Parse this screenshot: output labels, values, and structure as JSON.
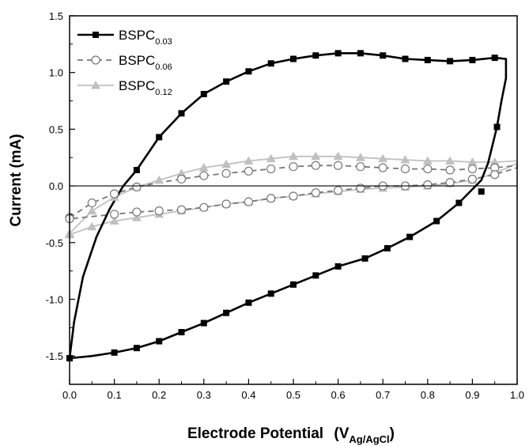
{
  "chart_data": {
    "type": "line",
    "title": "",
    "xlabel": {
      "main": "Electrode Potential",
      "unit_base": "V",
      "unit_sub": "Ag/AgCl"
    },
    "ylabel": "Current  (mA)",
    "xlim": [
      0.0,
      1.0
    ],
    "ylim": [
      -1.75,
      1.5
    ],
    "x_ticks": [
      "0.0",
      "0.1",
      "0.2",
      "0.3",
      "0.4",
      "0.5",
      "0.6",
      "0.7",
      "0.8",
      "0.9",
      "1.0"
    ],
    "y_ticks": [
      "1.5",
      "1.0",
      "0.5",
      "0.0",
      "-0.5",
      "-1.0",
      "-1.5"
    ],
    "y_tick_values": [
      1.5,
      1.0,
      0.5,
      0.0,
      -0.5,
      -1.0,
      -1.5
    ],
    "x_tick_values": [
      0.0,
      0.1,
      0.2,
      0.3,
      0.4,
      0.5,
      0.6,
      0.7,
      0.8,
      0.9,
      1.0
    ],
    "zero_line": true,
    "grid": false,
    "legend_position": "top-left",
    "series": [
      {
        "name": "BSPC",
        "name_sub": "0.03",
        "color": "#000000",
        "marker": "filled-square",
        "dash": "solid",
        "markers_x": [
          0.15,
          0.2,
          0.25,
          0.3,
          0.35,
          0.4,
          0.45,
          0.5,
          0.55,
          0.6,
          0.65,
          0.7,
          0.75,
          0.8,
          0.85,
          0.9,
          0.95,
          0.955,
          0.92,
          0.87,
          0.82,
          0.76,
          0.71,
          0.66,
          0.6,
          0.55,
          0.5,
          0.45,
          0.4,
          0.35,
          0.3,
          0.25,
          0.2,
          0.15,
          0.1,
          0.0
        ],
        "markers_y": [
          0.14,
          0.43,
          0.64,
          0.81,
          0.92,
          1.01,
          1.08,
          1.12,
          1.15,
          1.17,
          1.17,
          1.15,
          1.12,
          1.11,
          1.1,
          1.11,
          1.13,
          0.52,
          -0.05,
          -0.15,
          -0.31,
          -0.45,
          -0.55,
          -0.64,
          -0.71,
          -0.79,
          -0.87,
          -0.95,
          -1.03,
          -1.12,
          -1.21,
          -1.29,
          -1.37,
          -1.43,
          -1.47,
          -1.52
        ],
        "curve_x": [
          0.0,
          0.01,
          0.03,
          0.06,
          0.09,
          0.12,
          0.15,
          0.2,
          0.25,
          0.3,
          0.35,
          0.4,
          0.45,
          0.5,
          0.55,
          0.6,
          0.65,
          0.7,
          0.75,
          0.8,
          0.85,
          0.9,
          0.95,
          0.975,
          0.975,
          0.965,
          0.955,
          0.935,
          0.92,
          0.9,
          0.87,
          0.82,
          0.76,
          0.71,
          0.66,
          0.6,
          0.55,
          0.5,
          0.45,
          0.4,
          0.35,
          0.3,
          0.25,
          0.2,
          0.15,
          0.1,
          0.05,
          0.0
        ],
        "curve_y": [
          -1.52,
          -1.2,
          -0.8,
          -0.45,
          -0.2,
          0.0,
          0.14,
          0.43,
          0.64,
          0.81,
          0.92,
          1.01,
          1.08,
          1.12,
          1.15,
          1.17,
          1.17,
          1.15,
          1.12,
          1.11,
          1.1,
          1.11,
          1.13,
          1.12,
          0.95,
          0.75,
          0.52,
          0.2,
          0.05,
          -0.03,
          -0.15,
          -0.31,
          -0.45,
          -0.55,
          -0.64,
          -0.71,
          -0.79,
          -0.87,
          -0.95,
          -1.03,
          -1.12,
          -1.21,
          -1.29,
          -1.37,
          -1.43,
          -1.47,
          -1.5,
          -1.52
        ]
      },
      {
        "name": "BSPC",
        "name_sub": "0.06",
        "color": "#777777",
        "marker": "open-circle",
        "dash": "dashed",
        "markers_x": [
          0.0,
          0.05,
          0.1,
          0.15,
          0.25,
          0.3,
          0.35,
          0.4,
          0.45,
          0.5,
          0.55,
          0.6,
          0.65,
          0.7,
          0.75,
          0.8,
          0.85,
          0.9,
          0.95,
          0.95,
          0.9,
          0.85,
          0.8,
          0.75,
          0.7,
          0.65,
          0.6,
          0.55,
          0.5,
          0.45,
          0.4,
          0.35,
          0.3,
          0.25,
          0.2,
          0.15,
          0.1,
          0.0
        ],
        "markers_y": [
          -0.28,
          -0.15,
          -0.07,
          -0.01,
          0.06,
          0.09,
          0.11,
          0.13,
          0.15,
          0.17,
          0.18,
          0.18,
          0.17,
          0.16,
          0.15,
          0.15,
          0.14,
          0.15,
          0.16,
          0.1,
          0.06,
          0.03,
          0.01,
          0.0,
          0.0,
          -0.02,
          -0.04,
          -0.06,
          -0.09,
          -0.11,
          -0.14,
          -0.16,
          -0.19,
          -0.21,
          -0.22,
          -0.23,
          -0.25,
          -0.29
        ],
        "curve_x": [
          0.0,
          0.05,
          0.1,
          0.15,
          0.2,
          0.25,
          0.3,
          0.35,
          0.4,
          0.45,
          0.5,
          0.55,
          0.6,
          0.65,
          0.7,
          0.75,
          0.8,
          0.85,
          0.9,
          0.95,
          1.0,
          1.0,
          0.95,
          0.9,
          0.85,
          0.8,
          0.75,
          0.7,
          0.65,
          0.6,
          0.55,
          0.5,
          0.45,
          0.4,
          0.35,
          0.3,
          0.25,
          0.2,
          0.15,
          0.1,
          0.05,
          0.0
        ],
        "curve_y": [
          -0.28,
          -0.15,
          -0.07,
          -0.01,
          0.03,
          0.06,
          0.09,
          0.11,
          0.13,
          0.15,
          0.17,
          0.18,
          0.18,
          0.17,
          0.16,
          0.15,
          0.15,
          0.14,
          0.15,
          0.16,
          0.18,
          0.16,
          0.1,
          0.06,
          0.03,
          0.01,
          0.0,
          0.0,
          -0.02,
          -0.04,
          -0.06,
          -0.09,
          -0.11,
          -0.14,
          -0.16,
          -0.19,
          -0.21,
          -0.22,
          -0.23,
          -0.25,
          -0.27,
          -0.29
        ]
      },
      {
        "name": "BSPC",
        "name_sub": "0.12",
        "color": "#c0c0c0",
        "marker": "filled-triangle",
        "dash": "solid",
        "markers_x": [
          0.0,
          0.05,
          0.1,
          0.15,
          0.2,
          0.25,
          0.3,
          0.35,
          0.4,
          0.45,
          0.5,
          0.55,
          0.6,
          0.65,
          0.7,
          0.75,
          0.8,
          0.85,
          0.9,
          0.95,
          0.95,
          0.9,
          0.85,
          0.8,
          0.75,
          0.7,
          0.65,
          0.6,
          0.55,
          0.5,
          0.45,
          0.4,
          0.35,
          0.3,
          0.25,
          0.2,
          0.15,
          0.1,
          0.05,
          0.0
        ],
        "markers_y": [
          -0.42,
          -0.22,
          -0.1,
          -0.01,
          0.05,
          0.11,
          0.16,
          0.19,
          0.22,
          0.24,
          0.26,
          0.26,
          0.26,
          0.25,
          0.24,
          0.23,
          0.22,
          0.22,
          0.21,
          0.21,
          0.11,
          0.05,
          0.02,
          0.0,
          -0.01,
          -0.02,
          -0.03,
          -0.05,
          -0.07,
          -0.09,
          -0.11,
          -0.14,
          -0.16,
          -0.19,
          -0.22,
          -0.25,
          -0.28,
          -0.31,
          -0.36,
          -0.43
        ],
        "curve_x": [
          0.0,
          0.05,
          0.1,
          0.15,
          0.2,
          0.25,
          0.3,
          0.35,
          0.4,
          0.45,
          0.5,
          0.55,
          0.6,
          0.65,
          0.7,
          0.75,
          0.8,
          0.85,
          0.9,
          0.95,
          1.0,
          1.0,
          0.95,
          0.9,
          0.85,
          0.8,
          0.75,
          0.7,
          0.65,
          0.6,
          0.55,
          0.5,
          0.45,
          0.4,
          0.35,
          0.3,
          0.25,
          0.2,
          0.15,
          0.1,
          0.05,
          0.0
        ],
        "curve_y": [
          -0.42,
          -0.22,
          -0.1,
          -0.01,
          0.05,
          0.11,
          0.16,
          0.19,
          0.22,
          0.24,
          0.26,
          0.26,
          0.26,
          0.25,
          0.24,
          0.23,
          0.22,
          0.22,
          0.21,
          0.21,
          0.22,
          0.2,
          0.11,
          0.05,
          0.02,
          0.0,
          -0.01,
          -0.02,
          -0.03,
          -0.05,
          -0.07,
          -0.09,
          -0.11,
          -0.14,
          -0.16,
          -0.19,
          -0.22,
          -0.25,
          -0.28,
          -0.31,
          -0.36,
          -0.43
        ]
      }
    ]
  }
}
